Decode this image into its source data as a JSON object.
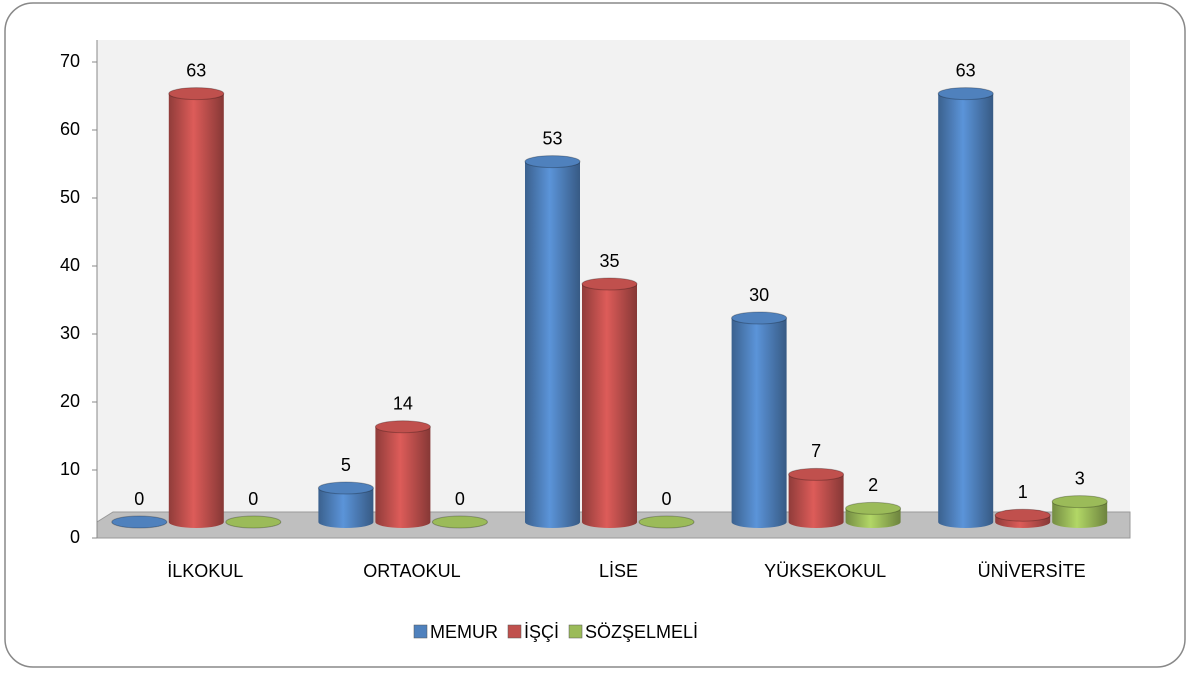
{
  "chart_data": {
    "type": "bar",
    "categories": [
      "İLKOKUL",
      "ORTAOKUL",
      "LİSE",
      "YÜKSEKOKUL",
      "ÜNİVERSİTE"
    ],
    "series": [
      {
        "name": "MEMUR",
        "color": "#4f81bd",
        "values": [
          0,
          5,
          53,
          30,
          63
        ]
      },
      {
        "name": "İŞÇİ",
        "color": "#c0504d",
        "values": [
          63,
          14,
          35,
          7,
          1
        ]
      },
      {
        "name": "SÖZŞELMELİ",
        "color": "#9bbb59",
        "values": [
          0,
          0,
          0,
          2,
          3
        ]
      }
    ],
    "ylim": [
      0,
      70
    ],
    "yticks": [
      0,
      10,
      20,
      30,
      40,
      50,
      60,
      70
    ],
    "legend": "bottom"
  }
}
